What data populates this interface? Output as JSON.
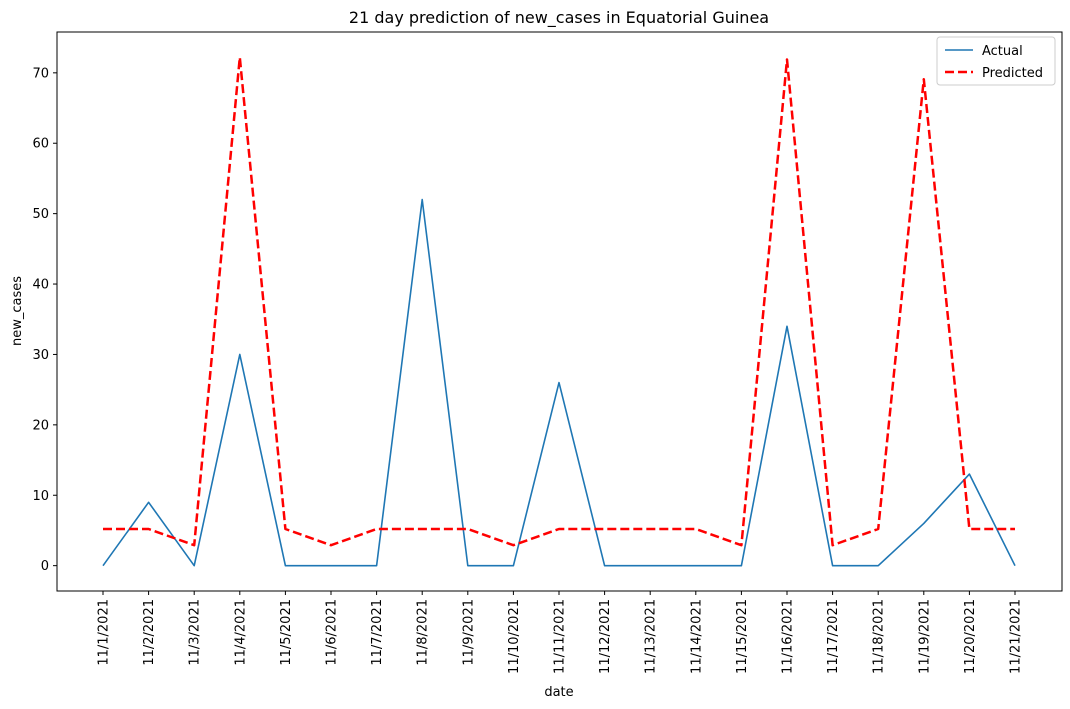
{
  "chart_data": {
    "type": "line",
    "title": "21 day prediction of new_cases in Equatorial Guinea",
    "xlabel": "date",
    "ylabel": "new_cases",
    "x": [
      "11/1/2021",
      "11/2/2021",
      "11/3/2021",
      "11/4/2021",
      "11/5/2021",
      "11/6/2021",
      "11/7/2021",
      "11/8/2021",
      "11/9/2021",
      "11/10/2021",
      "11/11/2021",
      "11/12/2021",
      "11/13/2021",
      "11/14/2021",
      "11/15/2021",
      "11/16/2021",
      "11/17/2021",
      "11/18/2021",
      "11/19/2021",
      "11/20/2021",
      "11/21/2021"
    ],
    "yticks": [
      0,
      10,
      20,
      30,
      40,
      50,
      60,
      70
    ],
    "ylim": [
      -3.6,
      75.8
    ],
    "grid": false,
    "legend_position": "upper-right",
    "series": [
      {
        "name": "Actual",
        "color": "#1f77b4",
        "style": "solid",
        "values": [
          0,
          9,
          0,
          30,
          0,
          0,
          0,
          52,
          0,
          0,
          26,
          0,
          0,
          0,
          0,
          34,
          0,
          0,
          6,
          13,
          0
        ]
      },
      {
        "name": "Predicted",
        "color": "#ff0000",
        "style": "dashed",
        "values": [
          5.2,
          5.2,
          2.9,
          72.2,
          5.2,
          2.9,
          5.2,
          5.2,
          5.2,
          2.9,
          5.2,
          5.2,
          5.2,
          5.2,
          2.9,
          71.9,
          2.9,
          5.2,
          69.1,
          5.2,
          5.2
        ]
      }
    ]
  }
}
